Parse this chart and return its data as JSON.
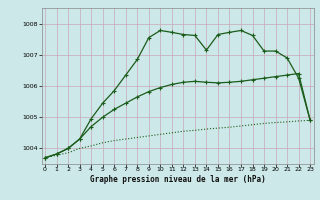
{
  "title": "Graphe pression niveau de la mer (hPa)",
  "bg_color": "#cde8e8",
  "grid_color": "#c8a8b8",
  "line_color": "#1a5c1a",
  "ylim": [
    1003.5,
    1008.5
  ],
  "yticks": [
    1004,
    1005,
    1006,
    1007,
    1008
  ],
  "xlim": [
    -0.3,
    23.3
  ],
  "xticks": [
    0,
    1,
    2,
    3,
    4,
    5,
    6,
    7,
    8,
    9,
    10,
    11,
    12,
    13,
    14,
    15,
    16,
    17,
    18,
    19,
    20,
    21,
    22,
    23
  ],
  "line1": [
    1003.7,
    1003.78,
    1003.86,
    1004.0,
    1004.08,
    1004.18,
    1004.25,
    1004.3,
    1004.35,
    1004.4,
    1004.45,
    1004.5,
    1004.55,
    1004.58,
    1004.62,
    1004.65,
    1004.68,
    1004.72,
    1004.76,
    1004.8,
    1004.83,
    1004.85,
    1004.88,
    1004.9
  ],
  "line2": [
    1003.7,
    1003.82,
    1004.0,
    1004.3,
    1004.95,
    1005.45,
    1005.85,
    1006.35,
    1006.85,
    1007.55,
    1007.78,
    1007.72,
    1007.65,
    1007.62,
    1007.15,
    1007.65,
    1007.72,
    1007.78,
    1007.62,
    1007.12,
    1007.12,
    1006.9,
    1006.25,
    1004.9
  ],
  "line3": [
    1003.7,
    1003.82,
    1004.0,
    1004.3,
    1004.7,
    1005.0,
    1005.25,
    1005.45,
    1005.65,
    1005.82,
    1005.95,
    1006.05,
    1006.12,
    1006.15,
    1006.12,
    1006.1,
    1006.12,
    1006.15,
    1006.2,
    1006.25,
    1006.3,
    1006.35,
    1006.4,
    1004.9
  ]
}
